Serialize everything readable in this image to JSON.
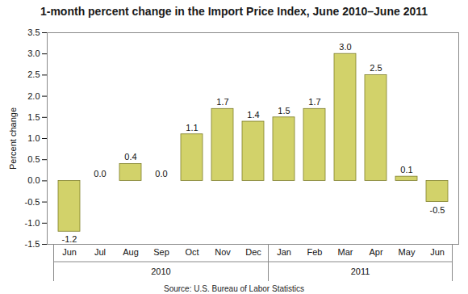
{
  "chart_data": {
    "type": "bar",
    "title": "1-month percent change in the Import Price Index, June 2010–June 2011",
    "y_label": "Percent change",
    "caption": "Source: U.S. Bureau of Labor Statistics",
    "categories": [
      "Jun",
      "Jul",
      "Aug",
      "Sep",
      "Oct",
      "Nov",
      "Dec",
      "Jan",
      "Feb",
      "Mar",
      "Apr",
      "May",
      "Jun"
    ],
    "category_groups": [
      {
        "label": "2010",
        "size": 7
      },
      {
        "label": "2011",
        "size": 6
      }
    ],
    "values": [
      -1.2,
      0.0,
      0.4,
      0.0,
      1.1,
      1.7,
      1.4,
      1.5,
      1.7,
      3.0,
      2.5,
      0.1,
      -0.5
    ],
    "value_labels": [
      "-1.2",
      "0.0",
      "0.4",
      "0.0",
      "1.1",
      "1.7",
      "1.4",
      "1.5",
      "1.7",
      "3.0",
      "2.5",
      "0.1",
      "-0.5"
    ],
    "data_labels": true,
    "color": "#d2d26a",
    "ylim": [
      -1.5,
      3.5
    ],
    "yticks": [
      -1.5,
      {
        "value": -1,
        "label": "-1.0"
      },
      -0.5,
      {
        "value": 0,
        "label": "0.0"
      },
      0.5,
      {
        "value": 1,
        "label": "1.0"
      },
      1.5,
      {
        "value": 2,
        "label": "2.0"
      },
      2.5,
      {
        "value": 3,
        "label": "3.0"
      },
      3.5
    ],
    "grid": false
  }
}
